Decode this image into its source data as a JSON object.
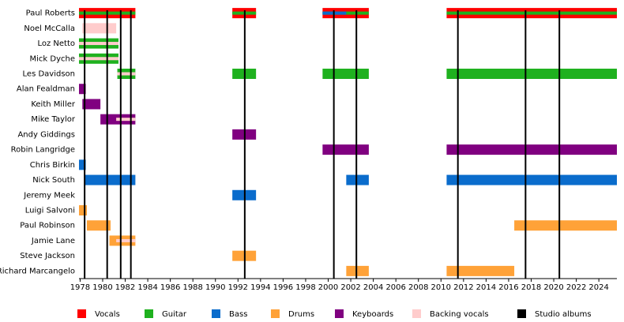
{
  "chart_data": {
    "type": "timeline",
    "xlim": [
      1977.9,
      2025.6
    ],
    "xticks": [
      1978,
      1980,
      1982,
      1984,
      1986,
      1988,
      1990,
      1992,
      1994,
      1996,
      1998,
      2000,
      2002,
      2004,
      2006,
      2008,
      2010,
      2012,
      2014,
      2016,
      2018,
      2020,
      2022,
      2024
    ],
    "roles": [
      {
        "name": "Vocals",
        "color": "#ff0000"
      },
      {
        "name": "Guitar",
        "color": "#1fb11f"
      },
      {
        "name": "Bass",
        "color": "#0a6ccc"
      },
      {
        "name": "Drums",
        "color": "#ffa238"
      },
      {
        "name": "Keyboards",
        "color": "#800080"
      },
      {
        "name": "Backing vocals",
        "color": "#ffcccc"
      }
    ],
    "studio_albums": {
      "name": "Studio albums",
      "color": "#000000",
      "x": [
        1978.4,
        1980.4,
        1981.6,
        1982.5,
        1992.6,
        2000.5,
        2002.5,
        2011.5,
        2017.5,
        2020.5
      ]
    },
    "rows": [
      {
        "name": "Paul Roberts",
        "periods": [
          {
            "start": 1977.9,
            "end": 1982.9,
            "role": 0,
            "stripes": [
              {
                "role": 1,
                "start": 1977.9,
                "end": 1982.9
              }
            ]
          },
          {
            "start": 1991.5,
            "end": 1993.6,
            "role": 0,
            "stripes": [
              {
                "role": 1,
                "start": 1991.5,
                "end": 1993.6
              }
            ]
          },
          {
            "start": 1999.5,
            "end": 2003.6,
            "role": 0,
            "stripes": [
              {
                "role": 1,
                "start": 1999.5,
                "end": 2003.6
              },
              {
                "role": 2,
                "start": 1999.5,
                "end": 2001.6
              }
            ]
          },
          {
            "start": 2010.5,
            "end": 2025.6,
            "role": 0,
            "stripes": [
              {
                "role": 1,
                "start": 2010.5,
                "end": 2025.6
              }
            ]
          }
        ]
      },
      {
        "name": "Noel McCalla",
        "periods": [
          {
            "start": 1978.2,
            "end": 1981.2,
            "role": 5
          }
        ]
      },
      {
        "name": "Loz Netto",
        "periods": [
          {
            "start": 1977.9,
            "end": 1981.4,
            "role": 1,
            "stripes": [
              {
                "role": 5,
                "start": 1977.9,
                "end": 1981.4
              }
            ]
          }
        ]
      },
      {
        "name": "Mick Dyche",
        "periods": [
          {
            "start": 1977.9,
            "end": 1981.4,
            "role": 1,
            "stripes": [
              {
                "role": 5,
                "start": 1977.9,
                "end": 1981.4
              }
            ]
          }
        ]
      },
      {
        "name": "Les Davidson",
        "periods": [
          {
            "start": 1981.3,
            "end": 1982.9,
            "role": 1,
            "stripes": [
              {
                "role": 5,
                "start": 1981.3,
                "end": 1982.9
              }
            ]
          },
          {
            "start": 1991.5,
            "end": 1993.6,
            "role": 1
          },
          {
            "start": 1999.5,
            "end": 2003.6,
            "role": 1
          },
          {
            "start": 2010.5,
            "end": 2025.6,
            "role": 1
          }
        ]
      },
      {
        "name": "Alan Fealdman",
        "periods": [
          {
            "start": 1977.9,
            "end": 1978.5,
            "role": 4
          }
        ]
      },
      {
        "name": "Keith Miller",
        "periods": [
          {
            "start": 1978.2,
            "end": 1979.8,
            "role": 4
          }
        ]
      },
      {
        "name": "Mike Taylor",
        "periods": [
          {
            "start": 1979.8,
            "end": 1982.9,
            "role": 4,
            "stripes": [
              {
                "role": 5,
                "start": 1981.2,
                "end": 1982.9
              }
            ]
          }
        ]
      },
      {
        "name": "Andy Giddings",
        "periods": [
          {
            "start": 1991.5,
            "end": 1993.6,
            "role": 4
          }
        ]
      },
      {
        "name": "Robin Langridge",
        "periods": [
          {
            "start": 1999.5,
            "end": 2003.6,
            "role": 4
          },
          {
            "start": 2010.5,
            "end": 2025.6,
            "role": 4
          }
        ]
      },
      {
        "name": "Chris Birkin",
        "periods": [
          {
            "start": 1977.9,
            "end": 1978.5,
            "role": 2
          }
        ]
      },
      {
        "name": "Nick South",
        "periods": [
          {
            "start": 1978.4,
            "end": 1982.9,
            "role": 2
          },
          {
            "start": 2001.6,
            "end": 2003.6,
            "role": 2
          },
          {
            "start": 2010.5,
            "end": 2025.6,
            "role": 2
          }
        ]
      },
      {
        "name": "Jeremy Meek",
        "periods": [
          {
            "start": 1991.5,
            "end": 1993.6,
            "role": 2
          }
        ]
      },
      {
        "name": "Luigi Salvoni",
        "periods": [
          {
            "start": 1977.9,
            "end": 1978.6,
            "role": 3
          }
        ]
      },
      {
        "name": "Paul Robinson",
        "periods": [
          {
            "start": 1978.6,
            "end": 1980.7,
            "role": 3
          },
          {
            "start": 2016.5,
            "end": 2025.6,
            "role": 3
          }
        ]
      },
      {
        "name": "Jamie Lane",
        "periods": [
          {
            "start": 1980.6,
            "end": 1982.9,
            "role": 3,
            "stripes": [
              {
                "role": 5,
                "start": 1981.2,
                "end": 1982.9
              }
            ]
          }
        ]
      },
      {
        "name": "Steve Jackson",
        "periods": [
          {
            "start": 1991.5,
            "end": 1993.6,
            "role": 3
          }
        ]
      },
      {
        "name": "Richard Marcangelo",
        "periods": [
          {
            "start": 2001.6,
            "end": 2003.6,
            "role": 3
          },
          {
            "start": 2010.5,
            "end": 2016.5,
            "role": 3
          }
        ]
      }
    ]
  }
}
